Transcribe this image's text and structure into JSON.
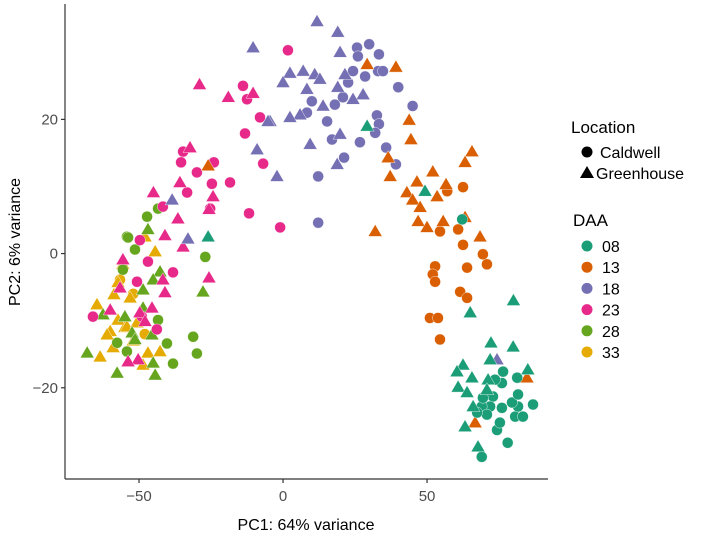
{
  "chart_data": {
    "type": "scatter",
    "title": "",
    "xlabel": "PC1: 64% variance",
    "ylabel": "PC2: 6% variance",
    "xlim": [
      -75.7,
      92
    ],
    "ylim": [
      -33.6,
      37.2
    ],
    "xticks": [
      -50,
      0,
      50
    ],
    "xtick_labels": [
      "−50",
      "0",
      "50"
    ],
    "yticks": [
      -20,
      0,
      20
    ],
    "ytick_labels": [
      "−20",
      "0",
      "20"
    ],
    "grid": false,
    "legend_position": "right",
    "shape_legend": {
      "title": "Location",
      "items": [
        {
          "label": "Caldwell",
          "shape": "circle"
        },
        {
          "label": "Greenhouse",
          "shape": "triangle"
        }
      ]
    },
    "color_legend": {
      "title": "DAA",
      "items": [
        {
          "label": "08",
          "color": "#1b9e77"
        },
        {
          "label": "13",
          "color": "#d95f02"
        },
        {
          "label": "18",
          "color": "#7570b3"
        },
        {
          "label": "23",
          "color": "#e7298a"
        },
        {
          "label": "28",
          "color": "#66a61e"
        },
        {
          "label": "33",
          "color": "#e6ab02"
        }
      ]
    },
    "series": [
      {
        "name": "33",
        "color": "#e6ab02",
        "caldwell": [
          [
            -56.6,
            -3.9
          ],
          [
            -52,
            -6
          ],
          [
            -48,
            -12
          ]
        ],
        "greenhouse": [
          [
            -64.6,
            -7.6
          ],
          [
            -63.5,
            -15.4
          ],
          [
            -48.6,
            -16.6
          ],
          [
            -42.7,
            -14.6
          ],
          [
            -46.9,
            -14.8
          ],
          [
            -60,
            -11.6
          ],
          [
            -54.9,
            -11
          ],
          [
            -53.1,
            -6.6
          ],
          [
            -58.7,
            -6.1
          ],
          [
            -44.4,
            0.3
          ],
          [
            -47.9,
            2.5
          ],
          [
            -55.6,
            -1.6
          ],
          [
            -57.3,
            -9.9
          ],
          [
            -54.2,
            -10.9
          ],
          [
            -61.1,
            -12.1
          ],
          [
            -50.7,
            -10.3
          ],
          [
            -57.3,
            -4.3
          ],
          [
            -52,
            -13
          ],
          [
            -59,
            -14
          ]
        ]
      },
      {
        "name": "28",
        "color": "#66a61e",
        "caldwell": [
          [
            -43.4,
            6.7
          ],
          [
            -47.2,
            5.5
          ],
          [
            -54.2,
            2.5
          ],
          [
            -53.8,
            2.4
          ],
          [
            -51.4,
            0.6
          ],
          [
            -27,
            -0.5
          ],
          [
            -31.2,
            -12.4
          ],
          [
            -29.9,
            -14.9
          ],
          [
            -38.2,
            -16.4
          ],
          [
            -40.3,
            -13.4
          ],
          [
            -43.4,
            -9.9
          ],
          [
            -55.6,
            -2.4
          ],
          [
            -57.6,
            -13.3
          ],
          [
            -54.2,
            -14.6
          ]
        ],
        "greenhouse": [
          [
            -46.9,
            3.6
          ],
          [
            -27.8,
            -5.7
          ],
          [
            -68,
            -14.8
          ],
          [
            -57.6,
            -17.8
          ],
          [
            -44.4,
            -18.1
          ],
          [
            -45.5,
            -12.1
          ],
          [
            -42.7,
            -2.7
          ],
          [
            -45.1,
            -3.9
          ],
          [
            -52.4,
            -11.8
          ],
          [
            -51.4,
            -12.8
          ],
          [
            -48.6,
            -8.1
          ],
          [
            -45.1,
            -16.3
          ],
          [
            -54.9,
            -9.4
          ],
          [
            -62.5,
            -9.1
          ],
          [
            -48.6,
            -5.4
          ]
        ]
      },
      {
        "name": "23",
        "color": "#e7298a",
        "caldwell": [
          [
            1.7,
            30.3
          ],
          [
            -13.9,
            25
          ],
          [
            -12.5,
            23
          ],
          [
            -8,
            20.3
          ],
          [
            -13.2,
            17.9
          ],
          [
            -34.7,
            15.2
          ],
          [
            -35.4,
            13.6
          ],
          [
            -29.9,
            12.1
          ],
          [
            -24,
            13.6
          ],
          [
            -24.7,
            10.4
          ],
          [
            -18.4,
            10.6
          ],
          [
            -33.3,
            9.1
          ],
          [
            -25.3,
            6.7
          ],
          [
            -6.9,
            13.4
          ],
          [
            -11.8,
            6
          ],
          [
            -1,
            3.9
          ],
          [
            -41.7,
            7
          ],
          [
            -66,
            -9.4
          ],
          [
            -38.2,
            -2.8
          ],
          [
            -50.7,
            -4.2
          ],
          [
            -46.9,
            -1.2
          ],
          [
            -49.7,
            2
          ],
          [
            -43.8,
            -11.3
          ],
          [
            -49,
            -9.4
          ]
        ],
        "greenhouse": [
          [
            -29,
            25.2
          ],
          [
            -19,
            23.3
          ],
          [
            -10.4,
            23.9
          ],
          [
            -32.3,
            15.8
          ],
          [
            -35.8,
            10.6
          ],
          [
            -24.3,
            8.5
          ],
          [
            -45,
            9.1
          ],
          [
            -36.5,
            5.2
          ],
          [
            -41,
            2.7
          ],
          [
            -25.7,
            6.6
          ],
          [
            -25.7,
            -3.6
          ],
          [
            -34.7,
            1
          ],
          [
            -55.6,
            -0.9
          ],
          [
            -56.6,
            -5.1
          ],
          [
            -41.7,
            -3.9
          ],
          [
            -50.3,
            -15.8
          ],
          [
            -53.8,
            -16.1
          ],
          [
            -49.7,
            -8.8
          ],
          [
            -45.5,
            -8.1
          ],
          [
            -47.9,
            -10.1
          ],
          [
            -60,
            -8.4
          ],
          [
            -41,
            -5.8
          ]
        ]
      },
      {
        "name": "18",
        "color": "#7570b3",
        "caldwell": [
          [
            25.7,
            30.7
          ],
          [
            29.9,
            31.2
          ],
          [
            33.3,
            29.7
          ],
          [
            26,
            29.4
          ],
          [
            33,
            27.2
          ],
          [
            34.7,
            27.2
          ],
          [
            24.3,
            27.2
          ],
          [
            28.5,
            26.4
          ],
          [
            22.6,
            25.5
          ],
          [
            40,
            24.8
          ],
          [
            10,
            22.7
          ],
          [
            20.8,
            23.3
          ],
          [
            18,
            22.2
          ],
          [
            8.3,
            21
          ],
          [
            45,
            22
          ],
          [
            32.6,
            20.6
          ],
          [
            33.3,
            19.3
          ],
          [
            32,
            18
          ],
          [
            15.3,
            19.7
          ],
          [
            17,
            17
          ],
          [
            26.7,
            16.6
          ],
          [
            35.8,
            15.8
          ],
          [
            39.2,
            13.3
          ],
          [
            21.2,
            14.3
          ],
          [
            12.2,
            11.5
          ],
          [
            12.2,
            4.6
          ]
        ],
        "greenhouse": [
          [
            11.8,
            34.6
          ],
          [
            19,
            33
          ],
          [
            -10.4,
            30.7
          ],
          [
            19.8,
            30
          ],
          [
            2.4,
            26.9
          ],
          [
            7,
            27.2
          ],
          [
            11,
            26.7
          ],
          [
            0,
            25.5
          ],
          [
            12.8,
            26
          ],
          [
            8.3,
            24.5
          ],
          [
            19,
            24.8
          ],
          [
            21.5,
            26.7
          ],
          [
            27.8,
            23.7
          ],
          [
            24.3,
            23
          ],
          [
            13.9,
            22
          ],
          [
            5.9,
            20.7
          ],
          [
            2.4,
            20.3
          ],
          [
            -4.5,
            19.7
          ],
          [
            -5.2,
            19.7
          ],
          [
            9.4,
            16.3
          ],
          [
            19.8,
            17.8
          ],
          [
            -9,
            15.5
          ],
          [
            18.8,
            13.3
          ],
          [
            -2.1,
            11.5
          ],
          [
            -38.5,
            8
          ],
          [
            -33,
            2.2
          ],
          [
            74.3,
            -15.8
          ]
        ]
      },
      {
        "name": "13",
        "color": "#d95f02",
        "caldwell": [
          [
            62.5,
            9.9
          ],
          [
            57,
            9.3
          ],
          [
            54.5,
            3.3
          ],
          [
            60.8,
            3.6
          ],
          [
            62.5,
            1.3
          ],
          [
            69.4,
            -0.1
          ],
          [
            70.8,
            -1.6
          ],
          [
            63.9,
            -2.1
          ],
          [
            52.8,
            -1.9
          ],
          [
            52,
            -3.1
          ],
          [
            52.8,
            -4.2
          ],
          [
            61.5,
            -5.7
          ],
          [
            63.9,
            -6.6
          ],
          [
            51,
            -9.6
          ],
          [
            53.8,
            -9.6
          ],
          [
            54.5,
            -12.8
          ]
        ],
        "greenhouse": [
          [
            29.2,
            28.2
          ],
          [
            39.2,
            27.8
          ],
          [
            43.8,
            19.9
          ],
          [
            44.4,
            17
          ],
          [
            36.5,
            14.3
          ],
          [
            37.2,
            11.5
          ],
          [
            32,
            3.3
          ],
          [
            -26,
            13.1
          ],
          [
            65.6,
            15.2
          ],
          [
            63.2,
            13.6
          ],
          [
            52,
            12.2
          ],
          [
            46.5,
            10.7
          ],
          [
            43,
            9.1
          ],
          [
            56.6,
            10.3
          ],
          [
            53.5,
            8.5
          ],
          [
            45,
            8
          ],
          [
            47.6,
            6.9
          ],
          [
            46.9,
            4.8
          ],
          [
            50,
            3.9
          ],
          [
            55.6,
            4.8
          ],
          [
            63.2,
            5.4
          ],
          [
            68.4,
            2.5
          ],
          [
            84.7,
            -18.5
          ],
          [
            66.7,
            -25.2
          ]
        ]
      },
      {
        "name": "08",
        "color": "#1b9e77",
        "caldwell": [
          [
            62.2,
            5.1
          ],
          [
            69,
            -30.3
          ],
          [
            78,
            -28.2
          ],
          [
            74.3,
            -26.3
          ],
          [
            75.3,
            -25.2
          ],
          [
            80.6,
            -24.3
          ],
          [
            83.3,
            -24.3
          ],
          [
            86.8,
            -22.5
          ],
          [
            81.6,
            -22.8
          ],
          [
            79.5,
            -22.2
          ],
          [
            81.6,
            -21
          ],
          [
            81.3,
            -18.5
          ],
          [
            76.4,
            -17.6
          ],
          [
            76,
            -19.3
          ],
          [
            73.6,
            -18.8
          ],
          [
            72.9,
            -21.3
          ],
          [
            71.9,
            -22.8
          ],
          [
            76,
            -23
          ],
          [
            69,
            -22.8
          ],
          [
            70.8,
            -24
          ],
          [
            67.4,
            -23.7
          ],
          [
            69.4,
            -21.5
          ]
        ],
        "greenhouse": [
          [
            29.2,
            19
          ],
          [
            49.3,
            9.3
          ],
          [
            65,
            -8.8
          ],
          [
            80,
            -7
          ],
          [
            72.2,
            -13.3
          ],
          [
            79.9,
            -13.9
          ],
          [
            71.9,
            -15.8
          ],
          [
            62.5,
            -16.6
          ],
          [
            60.4,
            -17.6
          ],
          [
            65.6,
            -18.5
          ],
          [
            60.8,
            -19.9
          ],
          [
            71.2,
            -18.8
          ],
          [
            85,
            -17.3
          ],
          [
            63.9,
            -20.7
          ],
          [
            66,
            -22.8
          ],
          [
            63.2,
            -25.8
          ],
          [
            67.7,
            -28.8
          ],
          [
            70.8,
            -20.3
          ],
          [
            -26,
            2.5
          ]
        ]
      }
    ]
  }
}
